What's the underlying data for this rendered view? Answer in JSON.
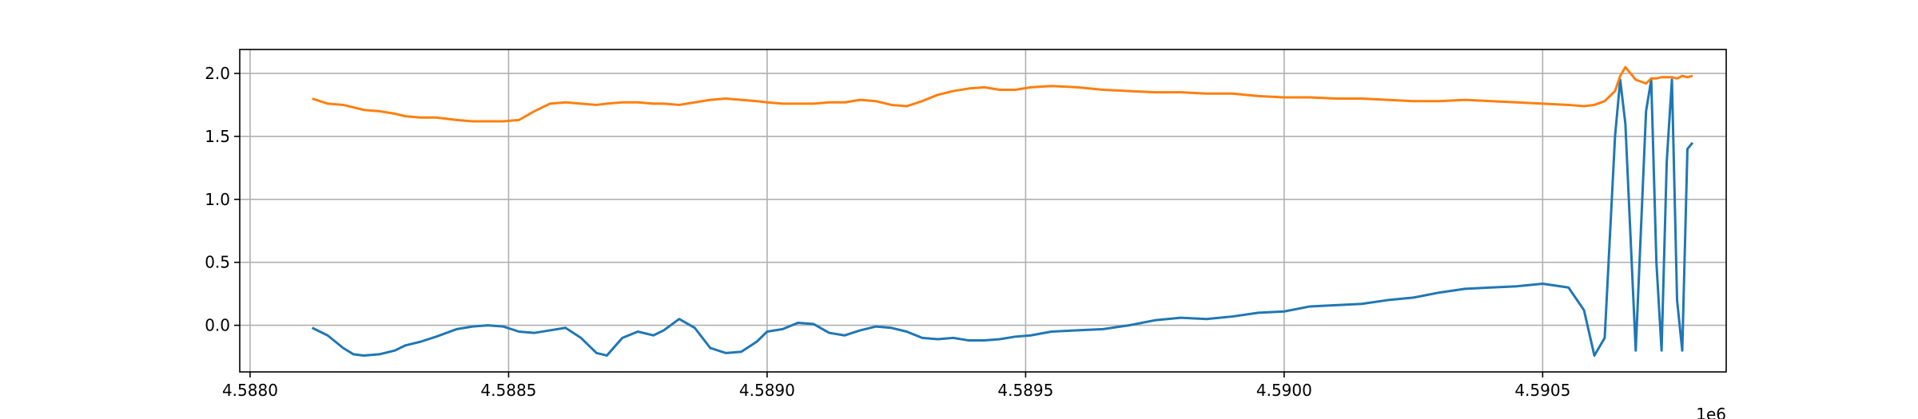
{
  "chart_data": {
    "type": "line",
    "title": "",
    "xlabel": "",
    "ylabel": "",
    "x_offset_label": "1e6",
    "xlim": [
      4.58798,
      4.590855
    ],
    "ylim": [
      -0.37,
      2.19
    ],
    "grid": true,
    "legend": "none",
    "x_ticks": [
      4.588,
      4.5885,
      4.589,
      4.5895,
      4.59,
      4.5905
    ],
    "x_tick_labels": [
      "4.5880",
      "4.5885",
      "4.5890",
      "4.5895",
      "4.5900",
      "4.5905"
    ],
    "y_ticks": [
      0.0,
      0.5,
      1.0,
      1.5,
      2.0
    ],
    "y_tick_labels": [
      "0.0",
      "0.5",
      "1.0",
      "1.5",
      "2.0"
    ],
    "series": [
      {
        "color": "#1f77b4",
        "x": [
          4.58812,
          4.58815,
          4.58818,
          4.5882,
          4.58822,
          4.58825,
          4.58828,
          4.5883,
          4.58833,
          4.58836,
          4.5884,
          4.58843,
          4.58846,
          4.58849,
          4.58852,
          4.58855,
          4.58858,
          4.58861,
          4.58864,
          4.58867,
          4.58869,
          4.58872,
          4.58875,
          4.58878,
          4.5888,
          4.58883,
          4.58886,
          4.58889,
          4.58892,
          4.58895,
          4.58898,
          4.589,
          4.58903,
          4.58906,
          4.58909,
          4.58912,
          4.58915,
          4.58918,
          4.58921,
          4.58924,
          4.58927,
          4.5893,
          4.58933,
          4.58936,
          4.58939,
          4.58942,
          4.58945,
          4.58948,
          4.58951,
          4.58955,
          4.5896,
          4.58965,
          4.5897,
          4.58975,
          4.5898,
          4.58985,
          4.5899,
          4.58995,
          4.59,
          4.59005,
          4.5901,
          4.59015,
          4.5902,
          4.59025,
          4.5903,
          4.59035,
          4.5904,
          4.59045,
          4.5905,
          4.59055,
          4.59058,
          4.5906,
          4.59062,
          4.59064,
          4.59065,
          4.59066,
          4.59068,
          4.5907,
          4.59071,
          4.59072,
          4.59073,
          4.59074,
          4.59075,
          4.59076,
          4.59077,
          4.59078,
          4.59079
        ],
        "y": [
          -0.02,
          -0.08,
          -0.18,
          -0.23,
          -0.24,
          -0.23,
          -0.2,
          -0.16,
          -0.13,
          -0.09,
          -0.03,
          -0.01,
          0.0,
          -0.01,
          -0.05,
          -0.06,
          -0.04,
          -0.02,
          -0.1,
          -0.22,
          -0.24,
          -0.1,
          -0.05,
          -0.08,
          -0.04,
          0.05,
          -0.02,
          -0.18,
          -0.22,
          -0.21,
          -0.13,
          -0.05,
          -0.03,
          0.02,
          0.01,
          -0.06,
          -0.08,
          -0.04,
          -0.01,
          -0.02,
          -0.05,
          -0.1,
          -0.11,
          -0.1,
          -0.12,
          -0.12,
          -0.11,
          -0.09,
          -0.08,
          -0.05,
          -0.04,
          -0.03,
          0.0,
          0.04,
          0.06,
          0.05,
          0.07,
          0.1,
          0.11,
          0.15,
          0.16,
          0.17,
          0.2,
          0.22,
          0.26,
          0.29,
          0.3,
          0.31,
          0.33,
          0.3,
          0.12,
          -0.24,
          -0.1,
          1.5,
          1.95,
          1.6,
          -0.2,
          1.7,
          1.95,
          0.5,
          -0.2,
          1.3,
          1.95,
          0.2,
          -0.2,
          1.4,
          1.45
        ]
      },
      {
        "color": "#ff7f0e",
        "x": [
          4.58812,
          4.58815,
          4.58818,
          4.5882,
          4.58822,
          4.58825,
          4.58828,
          4.5883,
          4.58833,
          4.58836,
          4.5884,
          4.58843,
          4.58846,
          4.58849,
          4.58852,
          4.58855,
          4.58858,
          4.58861,
          4.58864,
          4.58867,
          4.58869,
          4.58872,
          4.58875,
          4.58878,
          4.5888,
          4.58883,
          4.58886,
          4.58889,
          4.58892,
          4.58895,
          4.58898,
          4.589,
          4.58903,
          4.58906,
          4.58909,
          4.58912,
          4.58915,
          4.58918,
          4.58921,
          4.58924,
          4.58927,
          4.5893,
          4.58933,
          4.58936,
          4.58939,
          4.58942,
          4.58945,
          4.58948,
          4.58951,
          4.58955,
          4.5896,
          4.58965,
          4.5897,
          4.58975,
          4.5898,
          4.58985,
          4.5899,
          4.58995,
          4.59,
          4.59005,
          4.5901,
          4.59015,
          4.5902,
          4.59025,
          4.5903,
          4.59035,
          4.5904,
          4.59045,
          4.5905,
          4.59055,
          4.59058,
          4.5906,
          4.59062,
          4.59064,
          4.59065,
          4.59066,
          4.59068,
          4.5907,
          4.59071,
          4.59072,
          4.59073,
          4.59074,
          4.59075,
          4.59076,
          4.59077,
          4.59078,
          4.59079
        ],
        "y": [
          1.8,
          1.76,
          1.75,
          1.73,
          1.71,
          1.7,
          1.68,
          1.66,
          1.65,
          1.65,
          1.63,
          1.62,
          1.62,
          1.62,
          1.63,
          1.7,
          1.76,
          1.77,
          1.76,
          1.75,
          1.76,
          1.77,
          1.77,
          1.76,
          1.76,
          1.75,
          1.77,
          1.79,
          1.8,
          1.79,
          1.78,
          1.77,
          1.76,
          1.76,
          1.76,
          1.77,
          1.77,
          1.79,
          1.78,
          1.75,
          1.74,
          1.78,
          1.83,
          1.86,
          1.88,
          1.89,
          1.87,
          1.87,
          1.89,
          1.9,
          1.89,
          1.87,
          1.86,
          1.85,
          1.85,
          1.84,
          1.84,
          1.82,
          1.81,
          1.81,
          1.8,
          1.8,
          1.79,
          1.78,
          1.78,
          1.79,
          1.78,
          1.77,
          1.76,
          1.75,
          1.74,
          1.75,
          1.78,
          1.86,
          1.98,
          2.05,
          1.95,
          1.92,
          1.96,
          1.96,
          1.97,
          1.97,
          1.97,
          1.96,
          1.98,
          1.97,
          1.98
        ]
      }
    ]
  }
}
